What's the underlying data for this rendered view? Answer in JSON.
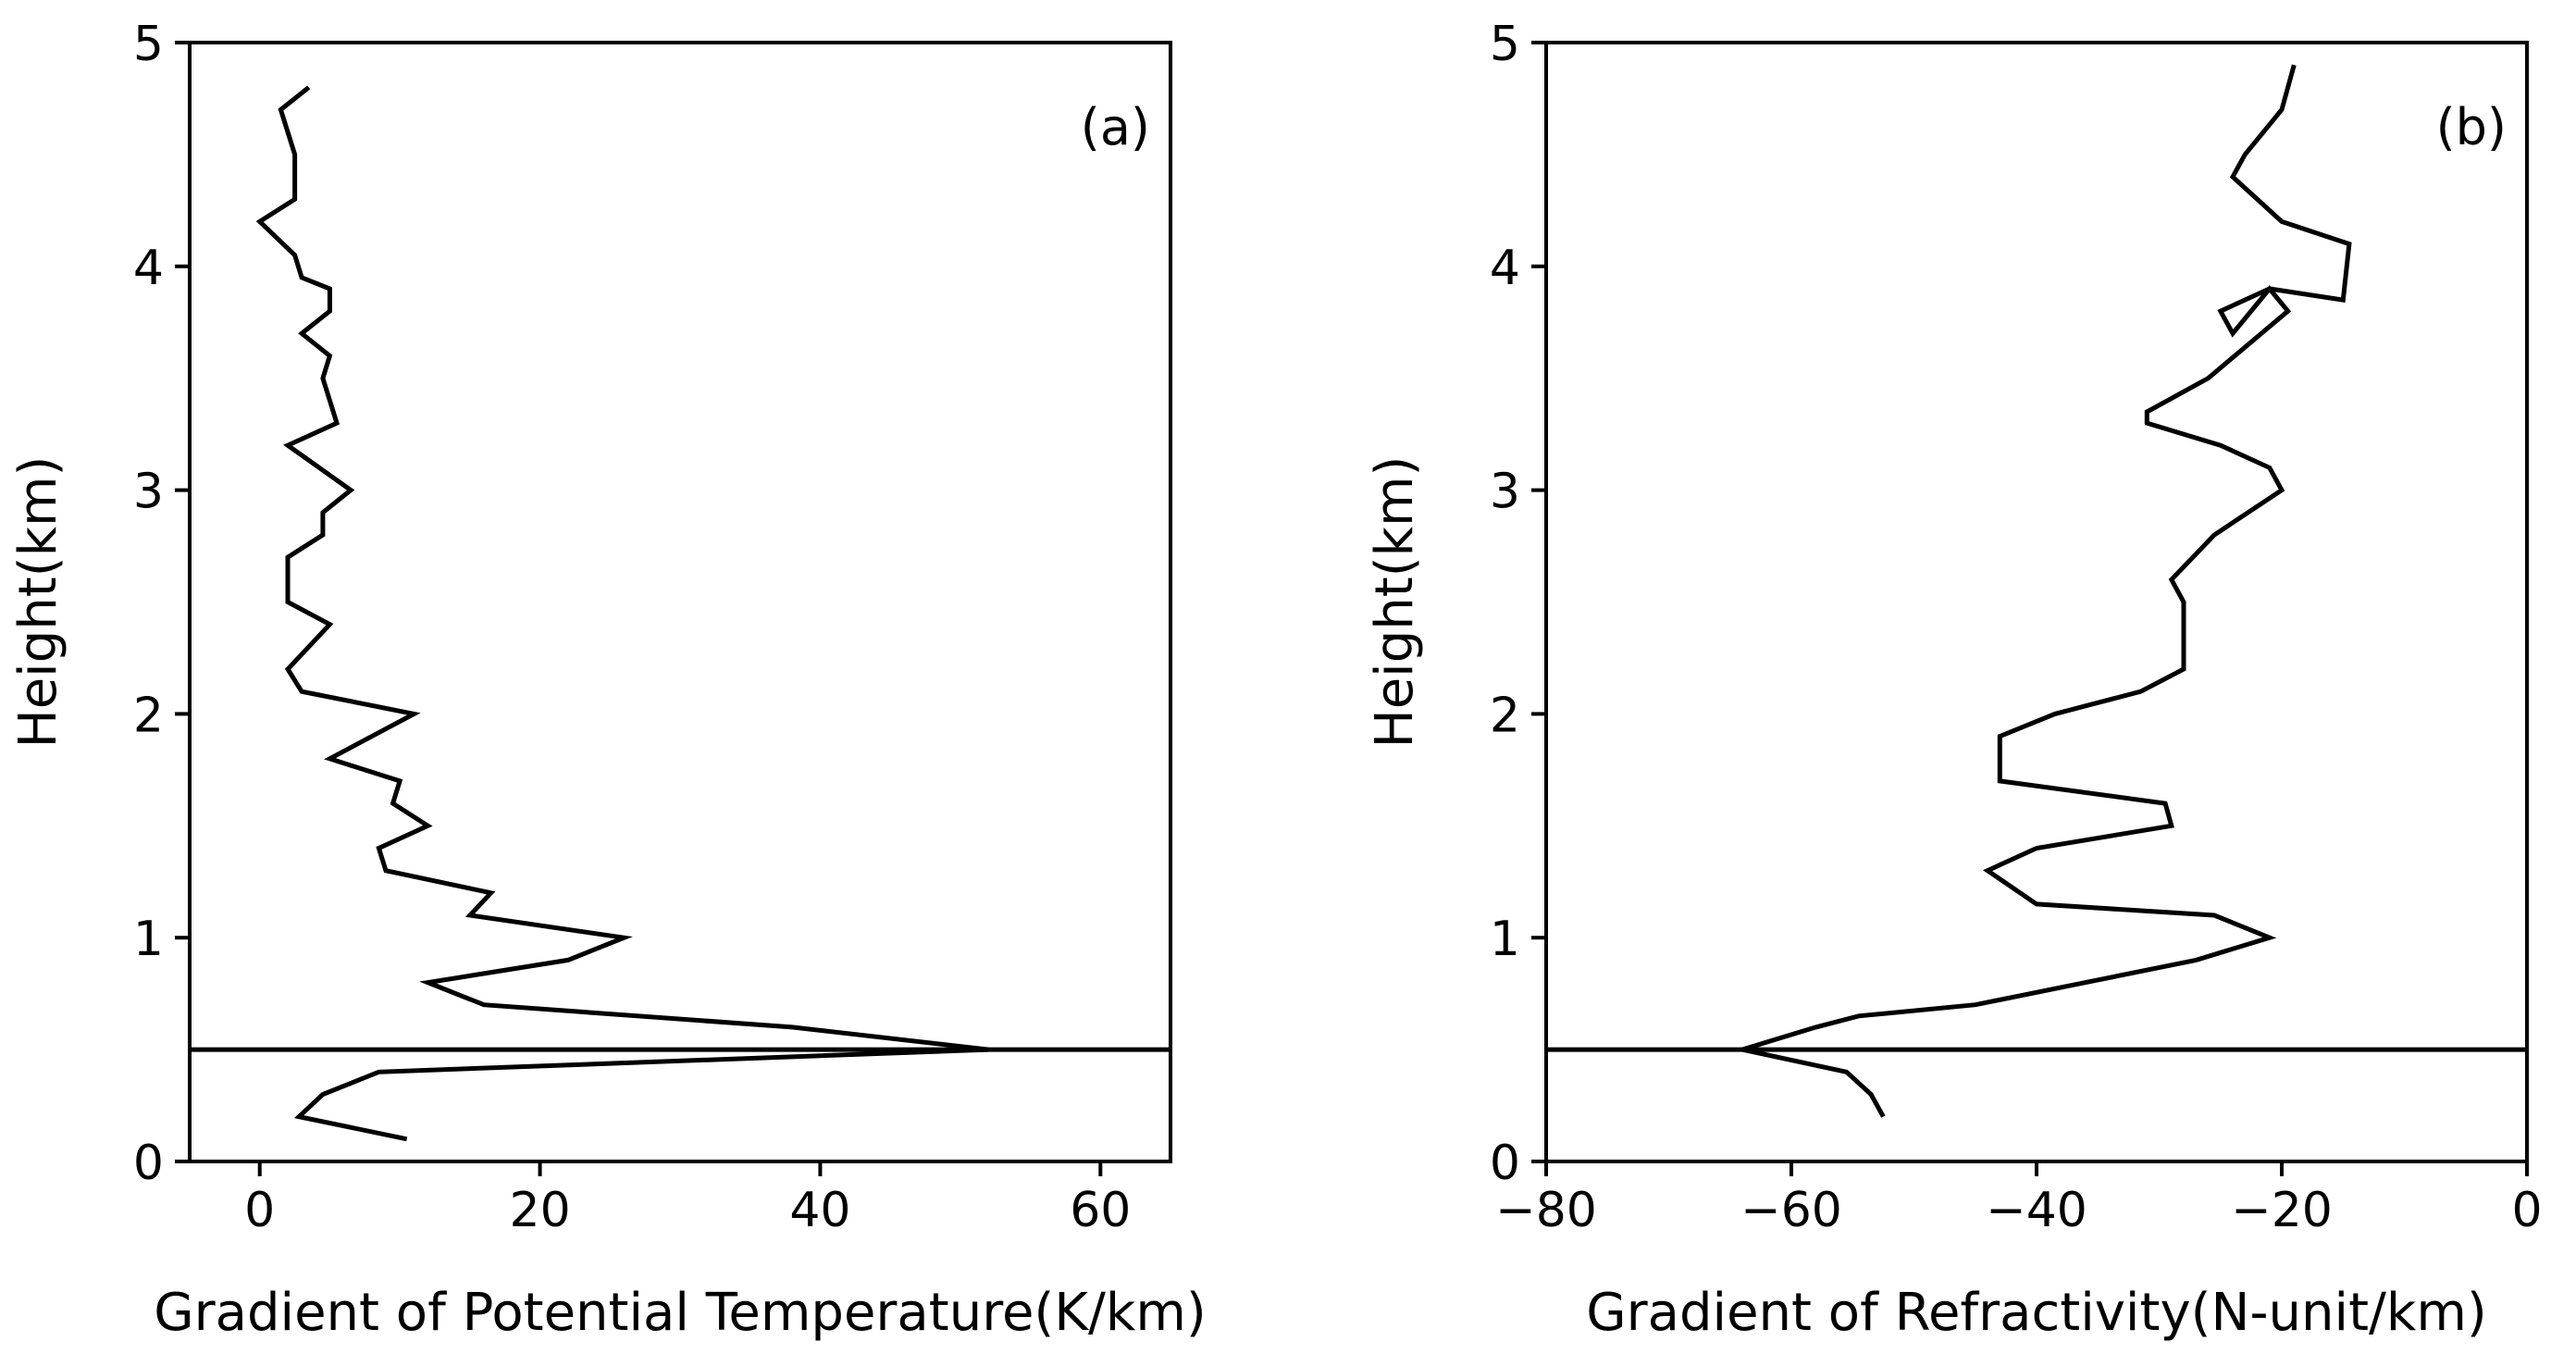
{
  "chart_data": [
    {
      "panel": "(a)",
      "type": "line",
      "xlabel": "Gradient of Potential Temperature(K/km)",
      "ylabel": "Height(km)",
      "xlim": [
        -5,
        65
      ],
      "ylim": [
        0,
        5
      ],
      "xticks": [
        0,
        20,
        40,
        60
      ],
      "xtick_labels": [
        "0",
        "20",
        "40",
        "60"
      ],
      "yticks": [
        0,
        1,
        2,
        3,
        4,
        5
      ],
      "ytick_labels": [
        "0",
        "1",
        "2",
        "3",
        "4",
        "5"
      ],
      "hline": 0.5,
      "x": [
        10.5,
        2.8,
        4.5,
        8.5,
        52,
        38,
        16,
        12,
        22,
        26,
        15,
        16.5,
        9,
        8.5,
        12,
        9.5,
        10,
        5,
        11,
        3,
        2,
        5,
        2,
        2,
        4.5,
        4.5,
        6.5,
        2,
        5.5,
        4.5,
        5,
        3,
        5,
        5,
        3,
        2.5,
        0,
        2.5,
        2.5,
        1.5,
        3.5
      ],
      "y": [
        0.1,
        0.2,
        0.3,
        0.4,
        0.5,
        0.6,
        0.7,
        0.8,
        0.9,
        1.0,
        1.1,
        1.2,
        1.3,
        1.4,
        1.5,
        1.6,
        1.7,
        1.8,
        2.0,
        2.1,
        2.2,
        2.4,
        2.5,
        2.7,
        2.8,
        2.9,
        3.0,
        3.2,
        3.3,
        3.5,
        3.6,
        3.7,
        3.8,
        3.9,
        3.95,
        4.05,
        4.2,
        4.3,
        4.5,
        4.7,
        4.8
      ]
    },
    {
      "panel": "(b)",
      "type": "line",
      "xlabel": "Gradient of Refractivity(N-unit/km)",
      "ylabel": "Height(km)",
      "xlim": [
        -80,
        0
      ],
      "ylim": [
        0,
        5
      ],
      "xticks": [
        -80,
        -60,
        -40,
        -20,
        0
      ],
      "xtick_labels": [
        "−80",
        "−60",
        "−40",
        "−20",
        "0"
      ],
      "yticks": [
        0,
        1,
        2,
        3,
        4,
        5
      ],
      "ytick_labels": [
        "0",
        "1",
        "2",
        "3",
        "4",
        "5"
      ],
      "hline": 0.5,
      "x": [
        -52.5,
        -53.5,
        -55.5,
        -64,
        -58,
        -54.5,
        -45,
        -36,
        -27,
        -21,
        -25.5,
        -40,
        -44,
        -40,
        -29,
        -29.5,
        -43,
        -43,
        -38.5,
        -31.5,
        -28,
        -28,
        -29,
        -25.5,
        -20,
        -21,
        -25,
        -31,
        -31,
        -26,
        -19.5,
        -21,
        -24,
        -25,
        -21,
        -15,
        -14.5,
        -20,
        -24,
        -23,
        -20,
        -19
      ],
      "y": [
        0.2,
        0.3,
        0.4,
        0.5,
        0.6,
        0.65,
        0.7,
        0.8,
        0.9,
        1.0,
        1.1,
        1.15,
        1.3,
        1.4,
        1.5,
        1.6,
        1.7,
        1.9,
        2.0,
        2.1,
        2.2,
        2.5,
        2.6,
        2.8,
        3.0,
        3.1,
        3.2,
        3.3,
        3.35,
        3.5,
        3.8,
        3.9,
        3.7,
        3.8,
        3.9,
        3.85,
        4.1,
        4.2,
        4.4,
        4.5,
        4.7,
        4.9
      ]
    }
  ]
}
